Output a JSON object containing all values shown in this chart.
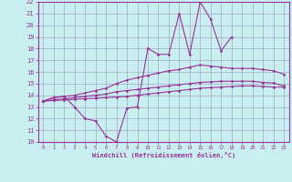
{
  "xlabel": "Windchill (Refroidissement éolien,°C)",
  "x": [
    0,
    1,
    2,
    3,
    4,
    5,
    6,
    7,
    8,
    9,
    10,
    11,
    12,
    13,
    14,
    15,
    16,
    17,
    18,
    19,
    20,
    21,
    22,
    23
  ],
  "line_upper": [
    13.5,
    13.8,
    13.9,
    13.0,
    12.0,
    11.8,
    10.5,
    10.0,
    12.9,
    13.0,
    18.0,
    17.5,
    17.5,
    21.0,
    17.5,
    22.0,
    20.5,
    17.8,
    19.0,
    null,
    null,
    null,
    null,
    null
  ],
  "line_mid_upper": [
    13.5,
    13.8,
    13.9,
    14.0,
    14.2,
    14.4,
    14.6,
    15.0,
    15.3,
    15.5,
    15.7,
    15.9,
    16.1,
    16.2,
    16.4,
    16.6,
    16.5,
    16.4,
    16.3,
    16.3,
    16.3,
    16.2,
    16.1,
    15.8
  ],
  "line_mid_lower": [
    13.5,
    13.6,
    13.7,
    13.8,
    13.9,
    14.0,
    14.1,
    14.3,
    14.4,
    14.5,
    14.6,
    14.7,
    14.8,
    14.9,
    15.0,
    15.1,
    15.15,
    15.2,
    15.2,
    15.2,
    15.2,
    15.1,
    15.05,
    14.8
  ],
  "line_lower": [
    13.5,
    13.55,
    13.6,
    13.65,
    13.7,
    13.75,
    13.8,
    13.85,
    13.9,
    14.0,
    14.1,
    14.2,
    14.3,
    14.4,
    14.5,
    14.6,
    14.65,
    14.7,
    14.75,
    14.8,
    14.8,
    14.75,
    14.7,
    14.7
  ],
  "color": "#993399",
  "bg_color": "#c8eef0",
  "grid_color": "#9999bb",
  "ylim": [
    10,
    22
  ],
  "yticks": [
    10,
    11,
    12,
    13,
    14,
    15,
    16,
    17,
    18,
    19,
    20,
    21,
    22
  ],
  "xticks": [
    0,
    1,
    2,
    3,
    4,
    5,
    6,
    7,
    8,
    9,
    10,
    11,
    12,
    13,
    14,
    15,
    16,
    17,
    18,
    19,
    20,
    21,
    22,
    23
  ],
  "marker": "D",
  "markersize": 1.8,
  "linewidth": 0.8
}
